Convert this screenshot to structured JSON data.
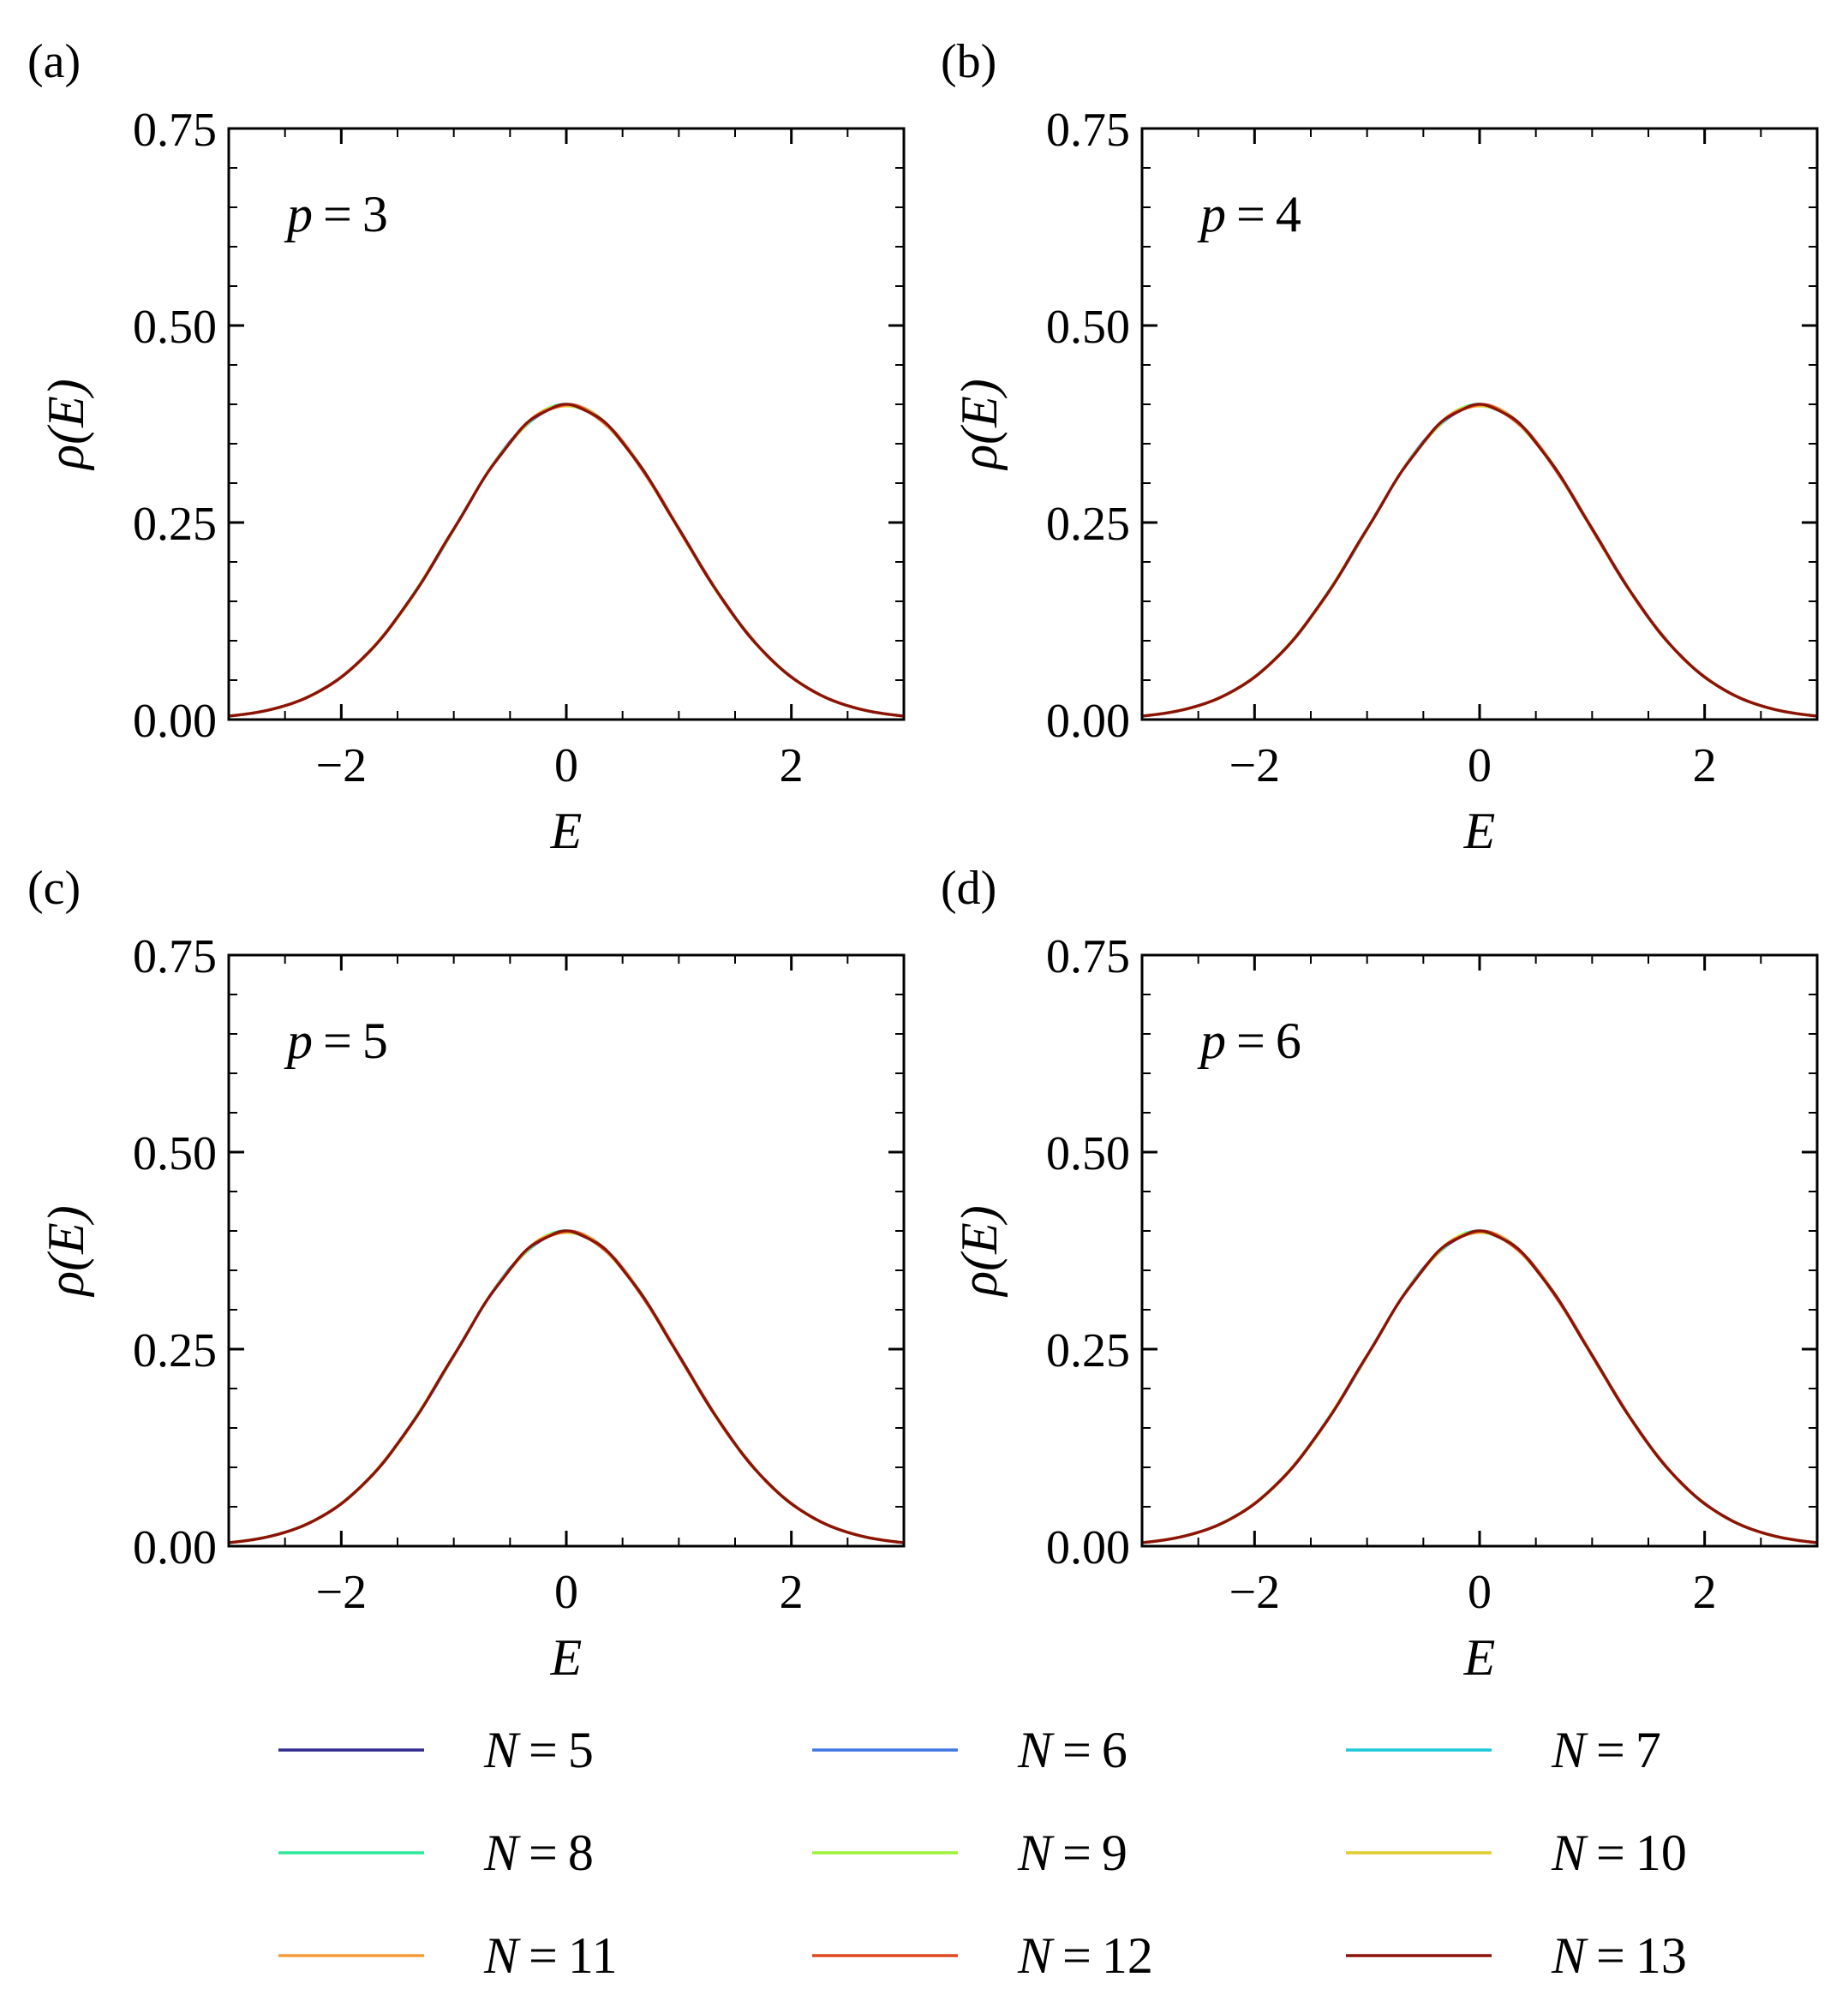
{
  "figure": {
    "legend_title": "",
    "legend": [
      {
        "label": "N = 5",
        "var": "N",
        "value": "5",
        "color": "#2f2a8c"
      },
      {
        "label": "N = 6",
        "var": "N",
        "value": "6",
        "color": "#3f77e6"
      },
      {
        "label": "N = 7",
        "var": "N",
        "value": "7",
        "color": "#1cc8d8"
      },
      {
        "label": "N = 8",
        "var": "N",
        "value": "8",
        "color": "#2ee89a"
      },
      {
        "label": "N = 9",
        "var": "N",
        "value": "9",
        "color": "#9ef23a"
      },
      {
        "label": "N = 10",
        "var": "N",
        "value": "10",
        "color": "#e0cc2e"
      },
      {
        "label": "N = 11",
        "var": "N",
        "value": "11",
        "color": "#f59a3a"
      },
      {
        "label": "N = 12",
        "var": "N",
        "value": "12",
        "color": "#e0481e"
      },
      {
        "label": "N = 13",
        "var": "N",
        "value": "13",
        "color": "#8a1208"
      }
    ]
  },
  "chart_data": [
    {
      "panel": "(a)",
      "type": "line",
      "annotation": {
        "var": "p",
        "value": "3"
      },
      "xlabel": "E",
      "ylabel": "ρ(E)",
      "xlim": [
        -3,
        3
      ],
      "ylim": [
        0,
        0.75
      ],
      "xticks": [
        -2,
        0,
        2
      ],
      "xtick_labels": [
        "−2",
        "0",
        "2"
      ],
      "yticks": [
        0,
        0.25,
        0.5,
        0.75
      ],
      "ytick_labels": [
        "0.00",
        "0.25",
        "0.50",
        "0.75"
      ],
      "curve": {
        "model": "gaussian",
        "mean": 0.0,
        "std": 1.0,
        "peak": 0.399
      },
      "series": [
        "N = 5",
        "N = 6",
        "N = 7",
        "N = 8",
        "N = 9",
        "N = 10",
        "N = 11",
        "N = 12",
        "N = 13"
      ]
    },
    {
      "panel": "(b)",
      "type": "line",
      "annotation": {
        "var": "p",
        "value": "4"
      },
      "xlabel": "E",
      "ylabel": "ρ(E)",
      "xlim": [
        -3,
        3
      ],
      "ylim": [
        0,
        0.75
      ],
      "xticks": [
        -2,
        0,
        2
      ],
      "xtick_labels": [
        "−2",
        "0",
        "2"
      ],
      "yticks": [
        0,
        0.25,
        0.5,
        0.75
      ],
      "ytick_labels": [
        "0.00",
        "0.25",
        "0.50",
        "0.75"
      ],
      "curve": {
        "model": "gaussian",
        "mean": 0.0,
        "std": 1.0,
        "peak": 0.399
      },
      "series": [
        "N = 5",
        "N = 6",
        "N = 7",
        "N = 8",
        "N = 9",
        "N = 10",
        "N = 11",
        "N = 12",
        "N = 13"
      ]
    },
    {
      "panel": "(c)",
      "type": "line",
      "annotation": {
        "var": "p",
        "value": "5"
      },
      "xlabel": "E",
      "ylabel": "ρ(E)",
      "xlim": [
        -3,
        3
      ],
      "ylim": [
        0,
        0.75
      ],
      "xticks": [
        -2,
        0,
        2
      ],
      "xtick_labels": [
        "−2",
        "0",
        "2"
      ],
      "yticks": [
        0,
        0.25,
        0.5,
        0.75
      ],
      "ytick_labels": [
        "0.00",
        "0.25",
        "0.50",
        "0.75"
      ],
      "curve": {
        "model": "gaussian",
        "mean": 0.0,
        "std": 1.0,
        "peak": 0.399
      },
      "series": [
        "N = 5",
        "N = 6",
        "N = 7",
        "N = 8",
        "N = 9",
        "N = 10",
        "N = 11",
        "N = 12",
        "N = 13"
      ]
    },
    {
      "panel": "(d)",
      "type": "line",
      "annotation": {
        "var": "p",
        "value": "6"
      },
      "xlabel": "E",
      "ylabel": "ρ(E)",
      "xlim": [
        -3,
        3
      ],
      "ylim": [
        0,
        0.75
      ],
      "xticks": [
        -2,
        0,
        2
      ],
      "xtick_labels": [
        "−2",
        "0",
        "2"
      ],
      "yticks": [
        0,
        0.25,
        0.5,
        0.75
      ],
      "ytick_labels": [
        "0.00",
        "0.25",
        "0.50",
        "0.75"
      ],
      "curve": {
        "model": "gaussian",
        "mean": 0.0,
        "std": 1.0,
        "peak": 0.399
      },
      "series": [
        "N = 5",
        "N = 6",
        "N = 7",
        "N = 8",
        "N = 9",
        "N = 10",
        "N = 11",
        "N = 12",
        "N = 13"
      ]
    }
  ]
}
